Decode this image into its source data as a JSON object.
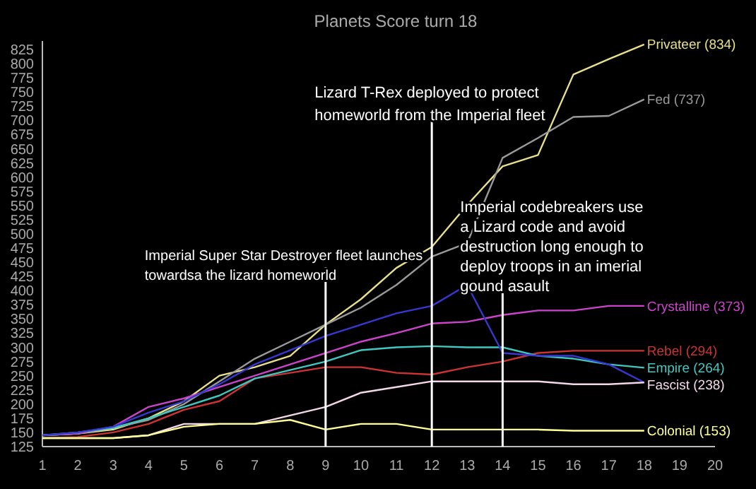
{
  "chart_data": {
    "type": "line",
    "title": "Planets Score turn 18",
    "x": [
      1,
      2,
      3,
      4,
      5,
      6,
      7,
      8,
      9,
      10,
      11,
      12,
      13,
      14,
      15,
      16,
      17,
      18
    ],
    "xlim": [
      1,
      20
    ],
    "xticks": [
      1,
      2,
      3,
      4,
      5,
      6,
      7,
      8,
      9,
      10,
      11,
      12,
      13,
      14,
      15,
      16,
      17,
      18,
      19,
      20
    ],
    "ylim": [
      125,
      840
    ],
    "yticks": [
      125,
      150,
      175,
      200,
      225,
      250,
      275,
      300,
      325,
      350,
      375,
      400,
      425,
      450,
      475,
      500,
      525,
      550,
      575,
      600,
      625,
      650,
      675,
      700,
      725,
      750,
      775,
      800,
      825
    ],
    "grid": false,
    "marker": "none",
    "line_style": "solid",
    "series": [
      {
        "name": "Privateer (834)",
        "color": "#e8e08c",
        "values": [
          145,
          148,
          155,
          175,
          205,
          250,
          265,
          285,
          340,
          385,
          440,
          477,
          551,
          619,
          639,
          781,
          808,
          834
        ]
      },
      {
        "name": "Fed (737)",
        "color": "#9a9a9a",
        "values": [
          145,
          148,
          158,
          172,
          200,
          240,
          280,
          310,
          340,
          370,
          410,
          460,
          484,
          634,
          669,
          706,
          708,
          737
        ]
      },
      {
        "name": "Crystalline (373)",
        "color": "#cc44cc",
        "values": [
          145,
          148,
          160,
          195,
          210,
          230,
          250,
          270,
          290,
          310,
          325,
          342,
          345,
          357,
          365,
          365,
          373,
          373
        ]
      },
      {
        "name": "Rebel (294)",
        "color": "#cc3333",
        "values": [
          140,
          142,
          150,
          165,
          190,
          205,
          245,
          255,
          265,
          265,
          255,
          252,
          265,
          275,
          290,
          294,
          294,
          294
        ]
      },
      {
        "name": "Empire (264)",
        "color": "#40c8c0",
        "values": [
          145,
          150,
          158,
          175,
          195,
          215,
          245,
          260,
          275,
          295,
          300,
          302,
          300,
          300,
          285,
          280,
          270,
          264
        ]
      },
      {
        "name": null,
        "color": "#3838d0",
        "values": [
          145,
          150,
          160,
          185,
          205,
          235,
          270,
          295,
          320,
          340,
          360,
          373,
          410,
          290,
          285,
          285,
          270,
          238
        ]
      },
      {
        "name": "Fascist (238)",
        "color": "#f4d8e8",
        "values": [
          140,
          140,
          140,
          145,
          165,
          165,
          165,
          180,
          195,
          220,
          230,
          240,
          240,
          240,
          240,
          235,
          235,
          238
        ]
      },
      {
        "name": "Colonial (153)",
        "color": "#ffff99",
        "values": [
          140,
          140,
          140,
          145,
          160,
          165,
          165,
          172,
          155,
          165,
          165,
          155,
          155,
          155,
          155,
          153,
          153,
          153
        ]
      }
    ],
    "ref_lines": [
      {
        "axis": "x",
        "value": 9,
        "label": "Imperial Super Star Destroyer fleet launches\ntowardsa the lizard homeworld",
        "color": "#ffffff"
      },
      {
        "axis": "x",
        "value": 12,
        "label": "Lizard T-Rex deployed to protect\nhomeworld from the Imperial fleet",
        "color": "#ffffff"
      },
      {
        "axis": "x",
        "value": 14,
        "label": "Imperial codebreakers use\na Lizard code and avoid\ndestruction long enough to\ndeploy troops in an imerial\ngound asault",
        "color": "#ffffff"
      }
    ]
  }
}
